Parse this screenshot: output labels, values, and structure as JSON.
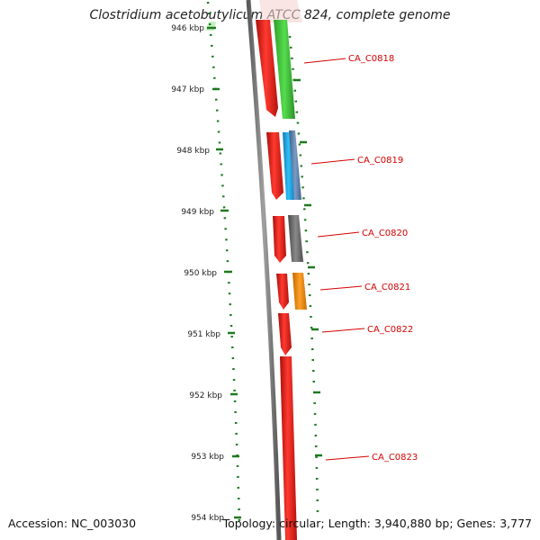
{
  "header": {
    "title": "Clostridium acetobutylicum ATCC 824, complete genome"
  },
  "footer": {
    "accession": "Accession: NC_003030",
    "summary": "Topology: circular; Length: 3,940,880 bp; Genes: 3,777"
  },
  "kbp_labels": [
    "946 kbp",
    "947 kbp",
    "948 kbp",
    "949 kbp",
    "950 kbp",
    "951 kbp",
    "952 kbp",
    "953 kbp",
    "954 kbp"
  ],
  "gene_labels": [
    "CA_C0818",
    "CA_C0819",
    "CA_C0820",
    "CA_C0821",
    "CA_C0822",
    "CA_C0823"
  ],
  "colors": {
    "forward_strand": "#e8261e",
    "gene_green": "#3fc43a",
    "gene_cyan": "#22a9e0",
    "gene_steel": "#5a7fa8",
    "gene_gray": "#666666",
    "gene_orange": "#f08a10",
    "label_red": "#d40000",
    "tick_green": "#1f7a1f"
  }
}
